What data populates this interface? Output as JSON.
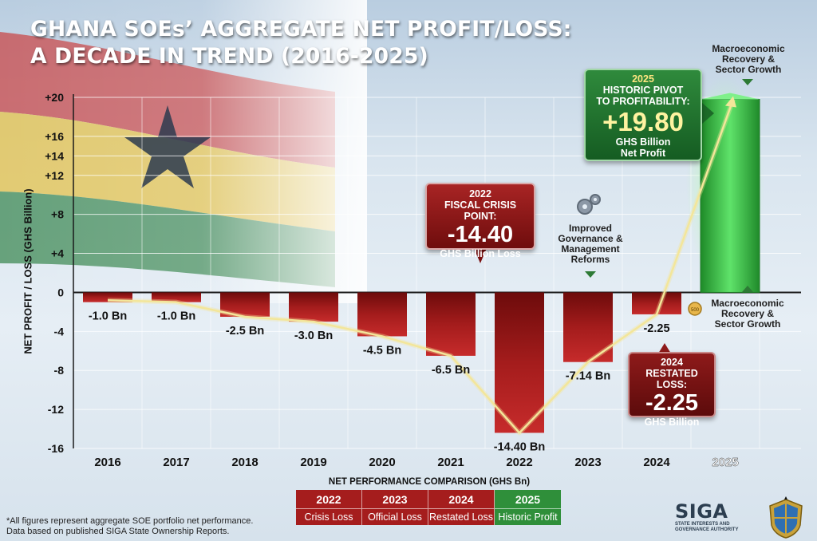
{
  "title": {
    "line1": "GHANA SOEs’ AGGREGATE NET PROFIT/LOSS:",
    "line2": "A DECADE IN TREND (2016-2025)"
  },
  "chart_data": {
    "type": "bar",
    "title": "GHANA SOEs’ AGGREGATE NET PROFIT/LOSS: A DECADE IN TREND (2016-2025)",
    "ylabel": "NET PROFIT / LOSS (GHS Billion)",
    "xlabel": "",
    "ylim": [
      -16,
      20
    ],
    "y_ticks": [
      {
        "value": 20,
        "label": "+20"
      },
      {
        "value": 16,
        "label": "+16"
      },
      {
        "value": 14,
        "label": "+14"
      },
      {
        "value": 12,
        "label": "+12"
      },
      {
        "value": 8,
        "label": "+8"
      },
      {
        "value": 4,
        "label": "+4"
      },
      {
        "value": 0,
        "label": "0"
      },
      {
        "value": -4,
        "label": "-4"
      },
      {
        "value": -8,
        "label": "-8"
      },
      {
        "value": -12,
        "label": "-12"
      },
      {
        "value": -16,
        "label": "-16"
      }
    ],
    "categories": [
      "2016",
      "2017",
      "2018",
      "2019",
      "2020",
      "2021",
      "2022",
      "2023",
      "2024",
      "2025"
    ],
    "values": [
      -1.0,
      -1.0,
      -2.5,
      -3.0,
      -4.5,
      -6.5,
      -14.4,
      -7.14,
      -2.25,
      19.8
    ],
    "data_labels": [
      "-1.0 Bn",
      "-1.0 Bn",
      "-2.5 Bn",
      "-3.0 Bn",
      "-4.5 Bn",
      "-6.5 Bn",
      "-14.40 Bn",
      "-7.14 Bn",
      "-2.25",
      ""
    ],
    "trend_line": {
      "present": true,
      "color": "#f3e69a"
    },
    "grid": true,
    "colors": {
      "loss": "#9d1717",
      "profit": "#2fbf3a"
    }
  },
  "callouts": {
    "c2022": {
      "year": "2022",
      "line": "FISCAL CRISIS POINT:",
      "value": "-14.40",
      "unit": "GHS Billion Loss"
    },
    "c2025": {
      "year": "2025",
      "line1": "HISTORIC PIVOT",
      "line2": "TO PROFITABILITY:",
      "value": "+19.80",
      "unit1": "GHS Billion",
      "unit2": "Net Profit"
    },
    "c2024": {
      "year": "2024",
      "line": "RESTATED LOSS:",
      "value": "-2.25",
      "unit": "GHS Billion"
    }
  },
  "notes": {
    "governance": [
      "Improved",
      "Governance &",
      "Management",
      "Reforms"
    ],
    "recovery_top": [
      "Macroeconomic",
      "Recovery &",
      "Sector Growth"
    ],
    "recovery_side": [
      "Macroeconomic",
      "Recovery &",
      "Sector Growth"
    ],
    "coin_label": "500"
  },
  "legend": {
    "title": "NET PERFORMANCE COMPARISON (GHS Bn)",
    "cells": [
      {
        "year": "2022",
        "label": "Crisis Loss",
        "color": "#a51d1d"
      },
      {
        "year": "2023",
        "label": "Official Loss",
        "color": "#a51d1d"
      },
      {
        "year": "2024",
        "label": "Restated Loss",
        "color": "#a51d1d"
      },
      {
        "year": "2025",
        "label": "Historic Profit",
        "color": "#2f8f3a"
      }
    ]
  },
  "footnote": {
    "line1": "*All figures represent aggregate SOE portfolio net performance.",
    "line2": "Data based on published SIGA State Ownership Reports."
  },
  "logo": {
    "word": "SIGA",
    "sub1": "STATE INTERESTS AND",
    "sub2": "GOVERNANCE AUTHORITY"
  }
}
